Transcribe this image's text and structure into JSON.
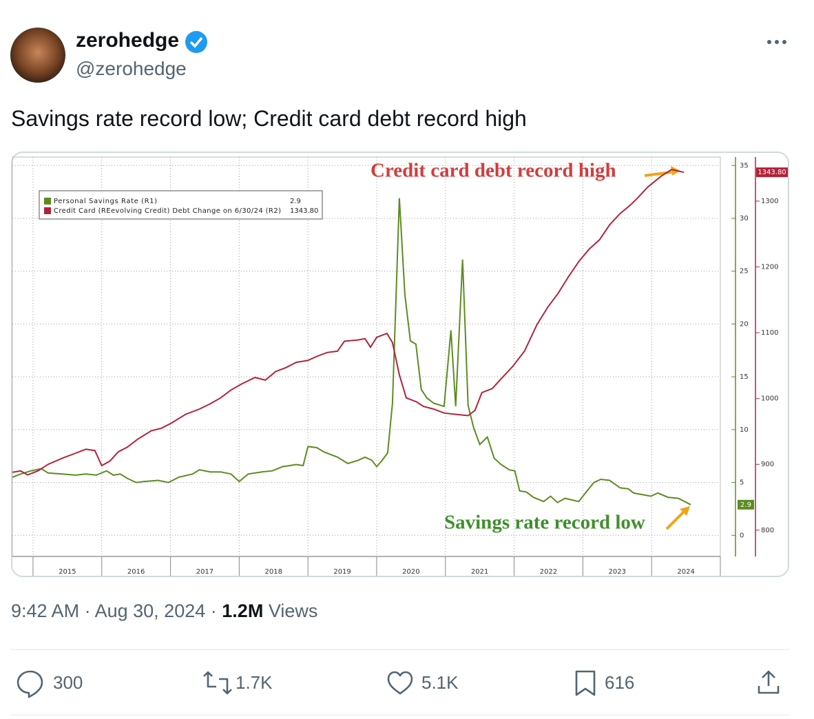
{
  "user": {
    "name": "zerohedge",
    "handle": "@zerohedge"
  },
  "tweet_text": "Savings rate record low; Credit card debt record high",
  "chart_data": {
    "type": "line",
    "xlim": [
      2014.7,
      2025
    ],
    "xticks": [
      2015,
      2016,
      2017,
      2018,
      2019,
      2020,
      2021,
      2022,
      2023,
      2024
    ],
    "ylim": [
      -2,
      35.8
    ],
    "yticks": [
      0,
      5,
      10,
      15,
      20,
      25,
      30,
      35
    ],
    "y2lim": [
      760,
      1367
    ],
    "y2ticks": [
      800,
      900,
      1000,
      1100,
      1200,
      1300
    ],
    "grid": true,
    "legend": "upper left",
    "series": [
      {
        "name": "Personal Savings Rate (R1)",
        "color": "#5b8c1f",
        "axis": "y",
        "latest": 2.9,
        "x": [
          2014.7,
          2014.82,
          2014.97,
          2015.12,
          2015.22,
          2015.42,
          2015.62,
          2015.77,
          2015.92,
          2016.07,
          2016.17,
          2016.27,
          2016.37,
          2016.5,
          2016.62,
          2016.82,
          2016.97,
          2017.12,
          2017.32,
          2017.42,
          2017.58,
          2017.73,
          2017.88,
          2018.0,
          2018.13,
          2018.33,
          2018.48,
          2018.63,
          2018.83,
          2018.93,
          2019.0,
          2019.13,
          2019.23,
          2019.43,
          2019.58,
          2019.73,
          2019.83,
          2019.93,
          2020.0,
          2020.08,
          2020.16,
          2020.23,
          2020.33,
          2020.41,
          2020.49,
          2020.57,
          2020.65,
          2020.73,
          2020.83,
          2020.98,
          2021.08,
          2021.15,
          2021.25,
          2021.33,
          2021.41,
          2021.5,
          2021.61,
          2021.71,
          2021.81,
          2021.93,
          2022.01,
          2022.08,
          2022.18,
          2022.28,
          2022.43,
          2022.53,
          2022.63,
          2022.74,
          2022.94,
          2023.06,
          2023.16,
          2023.26,
          2023.39,
          2023.54,
          2023.66,
          2023.74,
          2023.99,
          2024.09,
          2024.24,
          2024.39,
          2024.57
        ],
        "values": [
          5.5,
          5.8,
          6.1,
          6.3,
          5.9,
          5.8,
          5.7,
          5.8,
          5.7,
          6.1,
          5.7,
          5.8,
          5.4,
          5.0,
          5.1,
          5.2,
          5.0,
          5.5,
          5.8,
          6.2,
          6.0,
          6.0,
          5.8,
          5.1,
          5.8,
          6.0,
          6.1,
          6.5,
          6.7,
          6.6,
          8.4,
          8.3,
          7.9,
          7.4,
          6.8,
          7.1,
          7.4,
          7.1,
          6.5,
          7.1,
          7.8,
          12.5,
          31.9,
          22.8,
          18.4,
          18.1,
          13.8,
          13.0,
          12.5,
          12.2,
          19.4,
          12.2,
          26.1,
          12.3,
          10.2,
          8.6,
          9.3,
          7.3,
          6.7,
          6.2,
          6.1,
          4.2,
          4.1,
          3.6,
          3.2,
          3.7,
          3.1,
          3.5,
          3.2,
          4.2,
          5.0,
          5.3,
          5.2,
          4.5,
          4.4,
          4.0,
          3.7,
          4.0,
          3.6,
          3.5,
          2.9
        ]
      },
      {
        "name": "Credit Card (REevolving Credit) Debt Change on 6/30/24 (R2)",
        "color": "#b32238",
        "axis": "y2",
        "latest": {
          "value": 1343.8,
          "label": "1343.80"
        },
        "x": [
          2014.7,
          2014.82,
          2014.92,
          2015.07,
          2015.22,
          2015.42,
          2015.62,
          2015.77,
          2015.9,
          2016.0,
          2016.12,
          2016.24,
          2016.37,
          2016.52,
          2016.72,
          2016.87,
          2017.02,
          2017.22,
          2017.42,
          2017.58,
          2017.73,
          2017.88,
          2018.03,
          2018.23,
          2018.38,
          2018.53,
          2018.68,
          2018.83,
          2019.0,
          2019.13,
          2019.28,
          2019.43,
          2019.53,
          2019.73,
          2019.83,
          2019.91,
          2020.0,
          2020.15,
          2020.23,
          2020.33,
          2020.43,
          2020.58,
          2020.68,
          2020.83,
          2020.98,
          2021.15,
          2021.33,
          2021.43,
          2021.53,
          2021.68,
          2021.83,
          2021.98,
          2022.15,
          2022.33,
          2022.49,
          2022.64,
          2022.79,
          2022.94,
          2023.09,
          2023.24,
          2023.39,
          2023.54,
          2023.69,
          2023.79,
          2023.94,
          2024.14,
          2024.29,
          2024.47
        ],
        "values": [
          888,
          890,
          884,
          890,
          900,
          909,
          917,
          923,
          921,
          898,
          905,
          919,
          926,
          938,
          951,
          955,
          963,
          976,
          984,
          992,
          1001,
          1013,
          1022,
          1032,
          1028,
          1041,
          1047,
          1055,
          1058,
          1064,
          1070,
          1072,
          1087,
          1089,
          1091,
          1078,
          1093,
          1099,
          1085,
          1036,
          1001,
          995,
          988,
          984,
          978,
          976,
          974,
          982,
          1009,
          1015,
          1032,
          1049,
          1072,
          1112,
          1139,
          1160,
          1185,
          1208,
          1227,
          1241,
          1264,
          1281,
          1294,
          1304,
          1321,
          1338,
          1348,
          1343.8
        ]
      }
    ],
    "annotations": [
      {
        "text": "Credit card debt record high",
        "color": "#d43c3c"
      },
      {
        "text": "Savings rate record low",
        "color": "#3f8f2c"
      }
    ]
  },
  "timestamp": {
    "time": "9:42 AM",
    "separator": "·",
    "date": "Aug 30, 2024",
    "views_count": "1.2M",
    "views_label": "Views"
  },
  "actions": {
    "replies": "300",
    "reposts": "1.7K",
    "likes": "5.1K",
    "bookmarks": "616"
  }
}
